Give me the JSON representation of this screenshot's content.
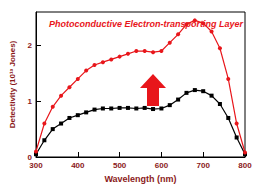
{
  "chart_data": {
    "type": "line",
    "title": "Photoconductive Electron-transporting Layer",
    "x_label": "Wavelength (nm)",
    "y_label": "Detectivity (10¹³ Jones)",
    "x": [
      300,
      320,
      340,
      360,
      380,
      400,
      420,
      440,
      460,
      480,
      500,
      520,
      540,
      560,
      580,
      600,
      620,
      640,
      660,
      680,
      700,
      720,
      740,
      760,
      780,
      800
    ],
    "series": [
      {
        "color": "#000000",
        "marker": "square",
        "values": [
          0.05,
          0.3,
          0.5,
          0.6,
          0.7,
          0.75,
          0.8,
          0.85,
          0.87,
          0.87,
          0.88,
          0.88,
          0.87,
          0.88,
          0.86,
          0.87,
          0.93,
          1.03,
          1.15,
          1.2,
          1.18,
          1.1,
          0.95,
          0.7,
          0.35,
          0.05
        ]
      },
      {
        "color": "#e8161b",
        "marker": "circle",
        "values": [
          0.1,
          0.6,
          0.9,
          1.1,
          1.25,
          1.4,
          1.55,
          1.65,
          1.7,
          1.75,
          1.8,
          1.85,
          1.9,
          1.9,
          1.88,
          1.9,
          2.05,
          2.2,
          2.38,
          2.45,
          2.4,
          2.25,
          1.95,
          1.4,
          0.6,
          0.08
        ]
      }
    ],
    "xlim": [
      300,
      800
    ],
    "xticks": [
      300,
      400,
      500,
      600,
      700,
      800
    ],
    "ylim": [
      0,
      2.6
    ],
    "yticks": [
      0,
      1,
      2
    ],
    "grid": false
  }
}
